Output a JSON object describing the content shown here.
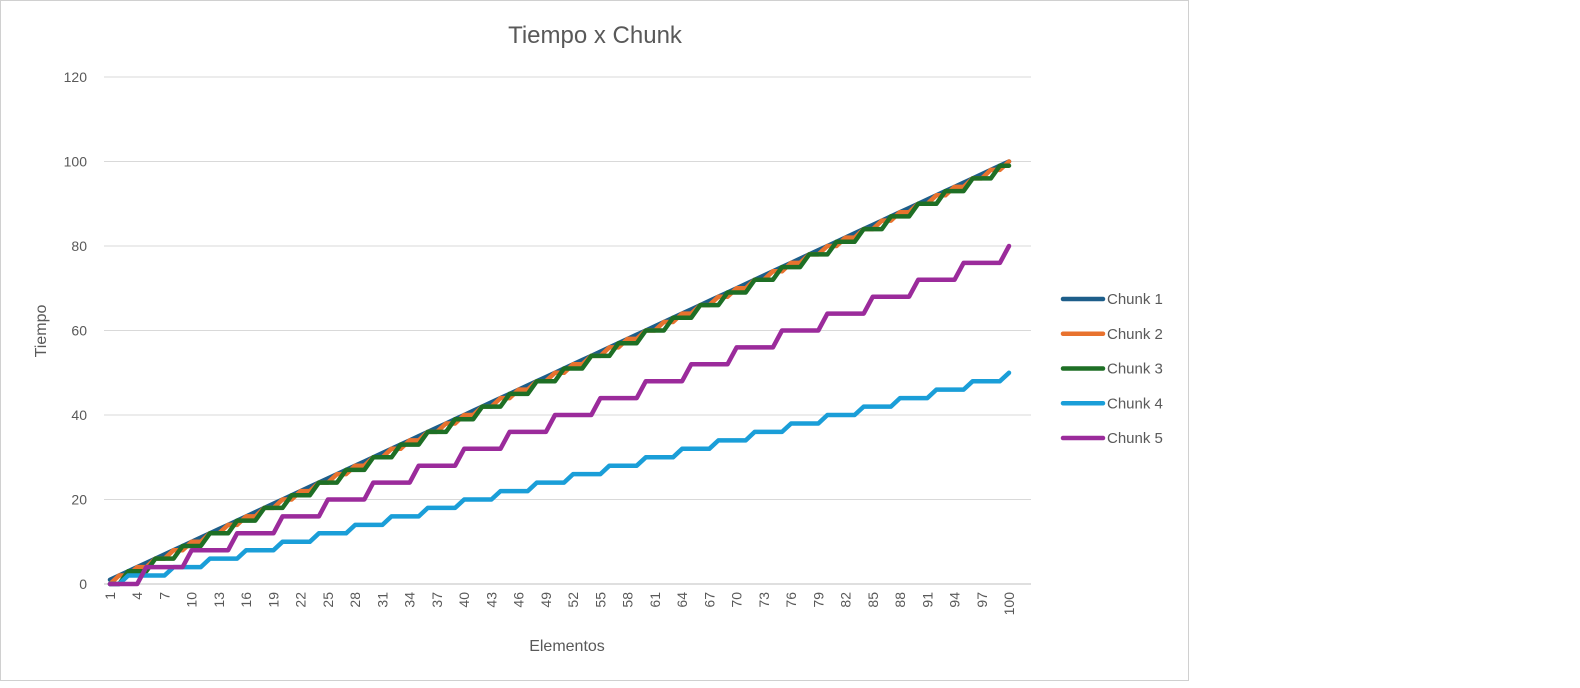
{
  "chart_data": {
    "type": "line",
    "title": "Tiempo  x Chunk",
    "xlabel": "Elementos",
    "ylabel": "Tiempo",
    "ylim": [
      0,
      120
    ],
    "y_ticks": [
      "0",
      "20",
      "40",
      "60",
      "80",
      "100",
      "120"
    ],
    "x_tick_labels": [
      "1",
      "4",
      "7",
      "10",
      "13",
      "16",
      "19",
      "22",
      "25",
      "28",
      "31",
      "34",
      "37",
      "40",
      "43",
      "46",
      "49",
      "52",
      "55",
      "58",
      "61",
      "64",
      "67",
      "70",
      "73",
      "76",
      "79",
      "82",
      "85",
      "88",
      "91",
      "94",
      "97",
      "100"
    ],
    "grid": true,
    "legend_position": "right",
    "x": [
      1,
      2,
      3,
      4,
      5,
      6,
      7,
      8,
      9,
      10,
      11,
      12,
      13,
      14,
      15,
      16,
      17,
      18,
      19,
      20,
      21,
      22,
      23,
      24,
      25,
      26,
      27,
      28,
      29,
      30,
      31,
      32,
      33,
      34,
      35,
      36,
      37,
      38,
      39,
      40,
      41,
      42,
      43,
      44,
      45,
      46,
      47,
      48,
      49,
      50,
      51,
      52,
      53,
      54,
      55,
      56,
      57,
      58,
      59,
      60,
      61,
      62,
      63,
      64,
      65,
      66,
      67,
      68,
      69,
      70,
      71,
      72,
      73,
      74,
      75,
      76,
      77,
      78,
      79,
      80,
      81,
      82,
      83,
      84,
      85,
      86,
      87,
      88,
      89,
      90,
      91,
      92,
      93,
      94,
      95,
      96,
      97,
      98,
      99,
      100
    ],
    "series": [
      {
        "name": "Chunk 1",
        "color": "#1d5e8a",
        "values": [
          1,
          2,
          3,
          4,
          5,
          6,
          7,
          8,
          9,
          10,
          11,
          12,
          13,
          14,
          15,
          16,
          17,
          18,
          19,
          20,
          21,
          22,
          23,
          24,
          25,
          26,
          27,
          28,
          29,
          30,
          31,
          32,
          33,
          34,
          35,
          36,
          37,
          38,
          39,
          40,
          41,
          42,
          43,
          44,
          45,
          46,
          47,
          48,
          49,
          50,
          51,
          52,
          53,
          54,
          55,
          56,
          57,
          58,
          59,
          60,
          61,
          62,
          63,
          64,
          65,
          66,
          67,
          68,
          69,
          70,
          71,
          72,
          73,
          74,
          75,
          76,
          77,
          78,
          79,
          80,
          81,
          82,
          83,
          84,
          85,
          86,
          87,
          88,
          89,
          90,
          91,
          92,
          93,
          94,
          95,
          96,
          97,
          98,
          99,
          100
        ]
      },
      {
        "name": "Chunk 2",
        "color": "#e8722e",
        "values": [
          0,
          2,
          2,
          4,
          4,
          6,
          6,
          8,
          8,
          10,
          10,
          12,
          12,
          14,
          14,
          16,
          16,
          18,
          18,
          20,
          20,
          22,
          22,
          24,
          24,
          26,
          26,
          28,
          28,
          30,
          30,
          32,
          32,
          34,
          34,
          36,
          36,
          38,
          38,
          40,
          40,
          42,
          42,
          44,
          44,
          46,
          46,
          48,
          48,
          50,
          50,
          52,
          52,
          54,
          54,
          56,
          56,
          58,
          58,
          60,
          60,
          62,
          62,
          64,
          64,
          66,
          66,
          68,
          68,
          70,
          70,
          72,
          72,
          74,
          74,
          76,
          76,
          78,
          78,
          80,
          80,
          82,
          82,
          84,
          84,
          86,
          86,
          88,
          88,
          90,
          90,
          92,
          92,
          94,
          94,
          96,
          96,
          98,
          98,
          100
        ]
      },
      {
        "name": "Chunk 3",
        "color": "#1e6f25",
        "values": [
          0,
          0,
          3,
          3,
          3,
          6,
          6,
          6,
          9,
          9,
          9,
          12,
          12,
          12,
          15,
          15,
          15,
          18,
          18,
          18,
          21,
          21,
          21,
          24,
          24,
          24,
          27,
          27,
          27,
          30,
          30,
          30,
          33,
          33,
          33,
          36,
          36,
          36,
          39,
          39,
          39,
          42,
          42,
          42,
          45,
          45,
          45,
          48,
          48,
          48,
          51,
          51,
          51,
          54,
          54,
          54,
          57,
          57,
          57,
          60,
          60,
          60,
          63,
          63,
          63,
          66,
          66,
          66,
          69,
          69,
          69,
          72,
          72,
          72,
          75,
          75,
          75,
          78,
          78,
          78,
          81,
          81,
          81,
          84,
          84,
          84,
          87,
          87,
          87,
          90,
          90,
          90,
          93,
          93,
          93,
          96,
          96,
          96,
          99,
          99
        ]
      },
      {
        "name": "Chunk 4",
        "color": "#1a9ed8",
        "values": [
          0,
          0,
          2,
          2,
          2,
          2,
          2,
          4,
          4,
          4,
          4,
          6,
          6,
          6,
          6,
          8,
          8,
          8,
          8,
          10,
          10,
          10,
          10,
          12,
          12,
          12,
          12,
          14,
          14,
          14,
          14,
          16,
          16,
          16,
          16,
          18,
          18,
          18,
          18,
          20,
          20,
          20,
          20,
          22,
          22,
          22,
          22,
          24,
          24,
          24,
          24,
          26,
          26,
          26,
          26,
          28,
          28,
          28,
          28,
          30,
          30,
          30,
          30,
          32,
          32,
          32,
          32,
          34,
          34,
          34,
          34,
          36,
          36,
          36,
          36,
          38,
          38,
          38,
          38,
          40,
          40,
          40,
          40,
          42,
          42,
          42,
          42,
          44,
          44,
          44,
          44,
          46,
          46,
          46,
          46,
          48,
          48,
          48,
          48,
          50
        ]
      },
      {
        "name": "Chunk 5",
        "color": "#9b2b9b",
        "values": [
          0,
          0,
          0,
          0,
          4,
          4,
          4,
          4,
          4,
          8,
          8,
          8,
          8,
          8,
          12,
          12,
          12,
          12,
          12,
          16,
          16,
          16,
          16,
          16,
          20,
          20,
          20,
          20,
          20,
          24,
          24,
          24,
          24,
          24,
          28,
          28,
          28,
          28,
          28,
          32,
          32,
          32,
          32,
          32,
          36,
          36,
          36,
          36,
          36,
          40,
          40,
          40,
          40,
          40,
          44,
          44,
          44,
          44,
          44,
          48,
          48,
          48,
          48,
          48,
          52,
          52,
          52,
          52,
          52,
          56,
          56,
          56,
          56,
          56,
          60,
          60,
          60,
          60,
          60,
          64,
          64,
          64,
          64,
          64,
          68,
          68,
          68,
          68,
          68,
          72,
          72,
          72,
          72,
          72,
          76,
          76,
          76,
          76,
          76,
          80
        ]
      }
    ]
  }
}
